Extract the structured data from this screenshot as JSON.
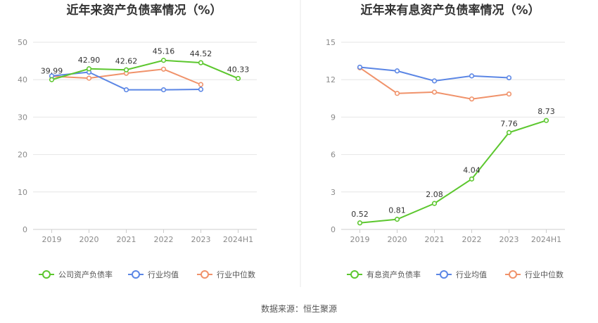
{
  "source_label": "数据来源：恒生聚源",
  "colors": {
    "main": "#5cc72e",
    "avg": "#5b86e5",
    "median": "#f0926a",
    "grid": "#e6e6e6",
    "axis": "#cccccc"
  },
  "chart_data": [
    {
      "type": "line",
      "title": "近年来资产负债率情况（%）",
      "categories": [
        "2019",
        "2020",
        "2021",
        "2022",
        "2023",
        "2024H1"
      ],
      "ylim": [
        0,
        50
      ],
      "yticks": [
        0,
        10,
        20,
        30,
        40,
        50
      ],
      "grid": true,
      "legend_position": "bottom",
      "series": [
        {
          "name": "公司资产负债率",
          "color": "#5cc72e",
          "values": [
            39.99,
            42.9,
            42.62,
            45.16,
            44.52,
            40.33
          ],
          "labels": [
            "39.99",
            "42.90",
            "42.62",
            "45.16",
            "44.52",
            "40.33"
          ]
        },
        {
          "name": "行业均值",
          "color": "#5b86e5",
          "values": [
            41.0,
            42.0,
            37.3,
            37.3,
            37.4,
            null
          ]
        },
        {
          "name": "行业中位数",
          "color": "#f0926a",
          "values": [
            40.9,
            40.4,
            41.7,
            42.8,
            38.7,
            null
          ]
        }
      ]
    },
    {
      "type": "line",
      "title": "近年来有息资产负债率情况（%）",
      "categories": [
        "2019",
        "2020",
        "2021",
        "2022",
        "2023",
        "2024H1"
      ],
      "ylim": [
        0,
        15
      ],
      "yticks": [
        0,
        3,
        6,
        9,
        12,
        15
      ],
      "grid": true,
      "legend_position": "bottom",
      "series": [
        {
          "name": "有息资产负债率",
          "color": "#5cc72e",
          "values": [
            0.52,
            0.81,
            2.08,
            4.04,
            7.76,
            8.73
          ],
          "labels": [
            "0.52",
            "0.81",
            "2.08",
            "4.04",
            "7.76",
            "8.73"
          ]
        },
        {
          "name": "行业均值",
          "color": "#5b86e5",
          "values": [
            13.0,
            12.7,
            11.9,
            12.3,
            12.15,
            null
          ]
        },
        {
          "name": "行业中位数",
          "color": "#f0926a",
          "values": [
            12.95,
            10.9,
            11.0,
            10.45,
            10.85,
            null
          ]
        }
      ]
    }
  ]
}
